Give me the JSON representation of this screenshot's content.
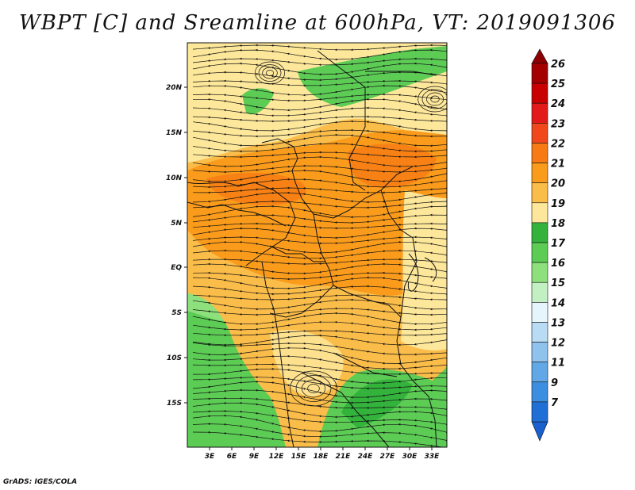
{
  "title": "WBPT [C] and Sreamline at 600hPa, VT: 2019091306",
  "footer": "GrADS: IGES/COLA",
  "lat_labels": [
    "20N",
    "15N",
    "10N",
    "5N",
    "EQ",
    "5S",
    "10S",
    "15S"
  ],
  "lon_labels": [
    "3E",
    "6E",
    "9E",
    "12E",
    "15E",
    "18E",
    "21E",
    "24E",
    "27E",
    "30E",
    "33E"
  ],
  "colorbar": {
    "levels": [
      "26",
      "25",
      "24",
      "23",
      "22",
      "21",
      "20",
      "19",
      "18",
      "17",
      "16",
      "15",
      "14",
      "13",
      "12",
      "11",
      "9",
      "7"
    ],
    "colors": [
      "#a50000",
      "#c80000",
      "#e21a1a",
      "#f0481c",
      "#f77a14",
      "#fa9b1c",
      "#fbbd4a",
      "#fde79a",
      "#33b33c",
      "#5ccc55",
      "#8ee07c",
      "#c3f0c2",
      "#e6f5fb",
      "#b9dcf4",
      "#8fc3ee",
      "#63a8e6",
      "#3c8ee0",
      "#1f6fd6"
    ],
    "top_arrow_color": "#8b0000",
    "bottom_arrow_color": "#1a5fd0"
  },
  "map_colors": {
    "green_dark": "#33b33c",
    "green": "#5ccc55",
    "green_light": "#8ee07c",
    "yellow": "#fde79a",
    "orange_light": "#fbbd4a",
    "orange": "#fa9b1c",
    "orange_dark": "#f77a14"
  }
}
